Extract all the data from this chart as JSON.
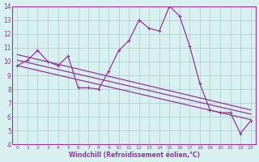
{
  "series": [
    {
      "x": [
        0,
        1,
        2,
        3,
        4,
        5,
        6,
        7,
        8,
        9,
        10,
        11,
        12,
        13,
        14,
        15,
        16,
        17,
        18,
        19,
        20,
        21,
        22,
        23
      ],
      "y": [
        9.7,
        10.1,
        10.8,
        10.0,
        9.7,
        10.4,
        8.1,
        8.1,
        8.0,
        9.3,
        10.8,
        11.5,
        13.0,
        12.4,
        12.2,
        14.0,
        13.3,
        11.1,
        8.4,
        6.5,
        6.3,
        6.3,
        4.8,
        5.7
      ]
    },
    {
      "x": [
        0,
        23
      ],
      "y": [
        10.5,
        6.5
      ]
    },
    {
      "x": [
        0,
        23
      ],
      "y": [
        10.1,
        6.2
      ]
    },
    {
      "x": [
        0,
        23
      ],
      "y": [
        9.7,
        5.8
      ]
    }
  ],
  "line_color": "#993399",
  "marker": "+",
  "marker_size": 3,
  "line_width": 0.9,
  "bg_color": "#d8f0f0",
  "grid_color": "#aacccc",
  "axis_label_color": "#993399",
  "xlabel": "Windchill (Refroidissement éolien,°C)",
  "xlim": [
    -0.5,
    23.5
  ],
  "ylim": [
    4,
    14
  ],
  "xticks": [
    0,
    1,
    2,
    3,
    4,
    5,
    6,
    7,
    8,
    9,
    10,
    11,
    12,
    13,
    14,
    15,
    16,
    17,
    18,
    19,
    20,
    21,
    22,
    23
  ],
  "yticks": [
    4,
    5,
    6,
    7,
    8,
    9,
    10,
    11,
    12,
    13,
    14
  ]
}
